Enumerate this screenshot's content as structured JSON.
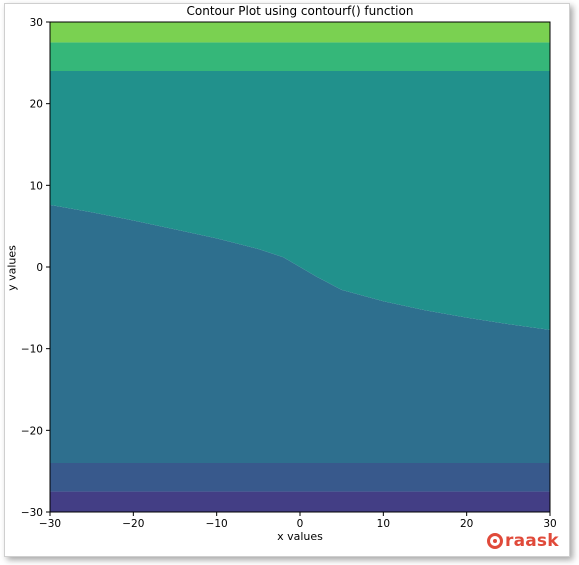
{
  "chart_data": {
    "type": "contourf",
    "title": "Contour Plot using contourf() function",
    "xlabel": "x values",
    "ylabel": "y values",
    "xlim": [
      -30,
      30
    ],
    "ylim": [
      -30,
      30
    ],
    "xticks": [
      -30,
      -20,
      -10,
      0,
      10,
      20,
      30
    ],
    "yticks": [
      -30,
      -20,
      -10,
      0,
      10,
      20,
      30
    ],
    "grid": false,
    "colormap": "viridis",
    "bands_bottom_to_top": [
      {
        "color": "#433e85",
        "y_from": -30,
        "y_to": -27.5
      },
      {
        "color": "#38598c",
        "y_from": -27.5,
        "y_to": -24
      },
      {
        "color": "#2e6f8e",
        "y_from": -24,
        "y_to": "boundary_curve"
      },
      {
        "color": "#21918c",
        "y_from": "boundary_curve",
        "y_to": 24
      },
      {
        "color": "#35b779",
        "y_from": 24,
        "y_to": 27.5
      },
      {
        "color": "#7ad151",
        "y_from": 27.5,
        "y_to": 30
      }
    ],
    "boundary_curve": {
      "x": [
        -30,
        -25,
        -20,
        -15,
        -10,
        -5,
        -2,
        0,
        2,
        5,
        10,
        15,
        20,
        25,
        30
      ],
      "y": [
        7.6,
        6.7,
        5.7,
        4.6,
        3.5,
        2.2,
        1.2,
        0.0,
        -1.2,
        -2.8,
        -4.2,
        -5.3,
        -6.2,
        -7.0,
        -7.7
      ]
    }
  },
  "watermark": {
    "text": "raask",
    "color": "#e04a3a"
  }
}
